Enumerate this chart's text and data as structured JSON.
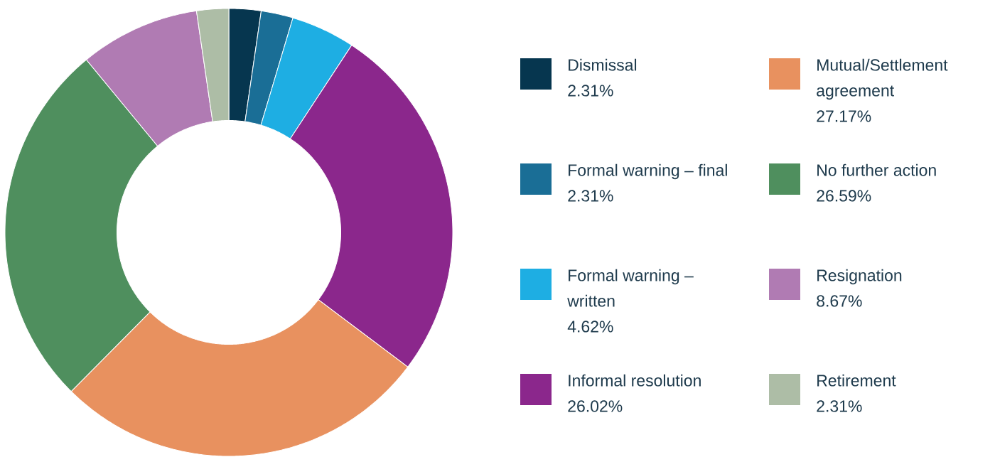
{
  "chart_data": {
    "type": "donut",
    "categories": [
      "Dismissal",
      "Formal warning – final",
      "Formal warning – written",
      "Informal resolution",
      "Mutual/Settlement agreement",
      "No further action",
      "Resignation",
      "Retirement"
    ],
    "values": [
      2.31,
      2.31,
      4.62,
      26.02,
      27.17,
      26.59,
      8.67,
      2.31
    ],
    "value_labels": [
      "2.31%",
      "2.31%",
      "4.62%",
      "26.02%",
      "27.17%",
      "26.59%",
      "8.67%",
      "2.31%"
    ],
    "colors": [
      "#06364f",
      "#1a6e96",
      "#1eaee3",
      "#8b278c",
      "#e8915f",
      "#4f8f5e",
      "#b07bb3",
      "#adbda6"
    ],
    "legend": "right"
  }
}
